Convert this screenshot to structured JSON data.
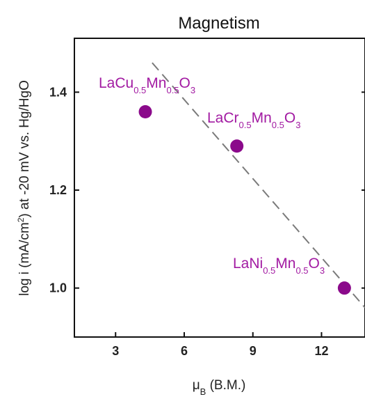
{
  "chart_data": {
    "type": "scatter",
    "title": "Magnetism",
    "xlabel": {
      "main": "μ",
      "sub": "B",
      "tail": " (B.M.)"
    },
    "ylabel": {
      "part1": "log i (mA/cm",
      "sup": "2",
      "part2": ") at -20 mV vs. Hg/HgO"
    },
    "xlim": [
      1.2,
      13.9
    ],
    "ylim": [
      0.9,
      1.51
    ],
    "xticks": [
      3,
      6,
      9,
      12
    ],
    "yticks": [
      1.0,
      1.2,
      1.4
    ],
    "xtick_labels": [
      "3",
      "6",
      "9",
      "12"
    ],
    "ytick_labels": [
      "1.0",
      "1.2",
      "1.4"
    ],
    "marker_color": "#8B0A8B",
    "label_color": "#A21AA2",
    "trendline_color": "#7a7a7a",
    "points": [
      {
        "x": 4.3,
        "y": 1.36,
        "label": {
          "parts": [
            {
              "t": "LaCu"
            },
            {
              "t": "0.5",
              "sub": true
            },
            {
              "t": "Mn"
            },
            {
              "t": "0.5",
              "sub": true
            },
            {
              "t": "O"
            },
            {
              "t": "3",
              "sub": true
            }
          ]
        }
      },
      {
        "x": 8.3,
        "y": 1.29,
        "label": {
          "parts": [
            {
              "t": "LaCr"
            },
            {
              "t": "0.5",
              "sub": true
            },
            {
              "t": "Mn"
            },
            {
              "t": "0.5",
              "sub": true
            },
            {
              "t": "O"
            },
            {
              "t": "3",
              "sub": true
            }
          ]
        }
      },
      {
        "x": 13.0,
        "y": 1.0,
        "label": {
          "parts": [
            {
              "t": "LaNi"
            },
            {
              "t": "0.5",
              "sub": true
            },
            {
              "t": "Mn"
            },
            {
              "t": "0.5",
              "sub": true
            },
            {
              "t": "O"
            },
            {
              "t": "3",
              "sub": true
            }
          ]
        }
      }
    ],
    "trendline": {
      "style": "dashed",
      "x": [
        4.6,
        13.9
      ],
      "y": [
        1.46,
        0.96
      ]
    }
  }
}
